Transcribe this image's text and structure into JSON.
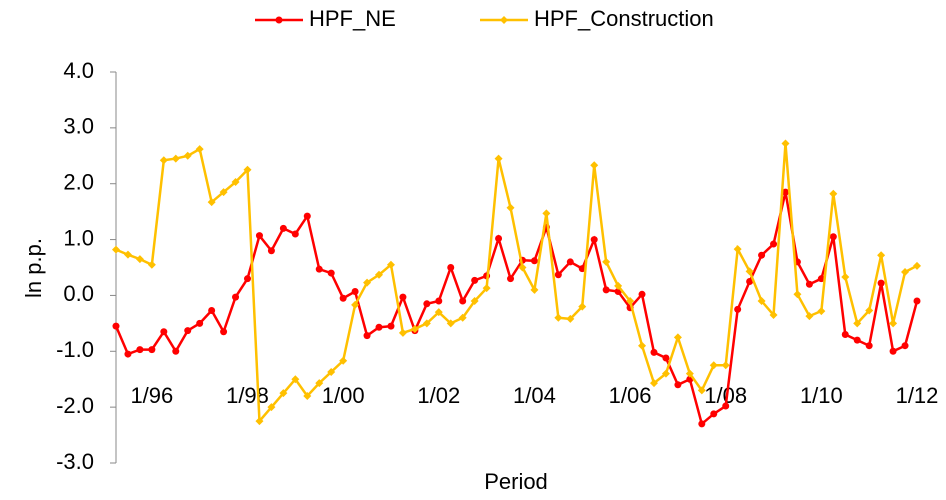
{
  "chart_data": {
    "type": "line",
    "y_label": "ln p.p.",
    "x_label": "Period",
    "categories": [
      null,
      null,
      null,
      "1/96",
      null,
      null,
      null,
      null,
      null,
      null,
      null,
      "1/98",
      null,
      null,
      null,
      null,
      null,
      null,
      null,
      "1/00",
      null,
      null,
      null,
      null,
      null,
      null,
      null,
      "1/02",
      null,
      null,
      null,
      null,
      null,
      null,
      null,
      "1/04",
      null,
      null,
      null,
      null,
      null,
      null,
      null,
      "1/06",
      null,
      null,
      null,
      null,
      null,
      null,
      null,
      "1/08",
      null,
      null,
      null,
      null,
      null,
      null,
      null,
      "1/10",
      null,
      null,
      null,
      null,
      null,
      null,
      null,
      "1/12"
    ],
    "series": [
      {
        "name": "HPF_NE",
        "color": "#ff0000",
        "values": [
          -0.55,
          -1.05,
          -0.97,
          -0.97,
          -0.65,
          -1.0,
          -0.63,
          -0.5,
          -0.27,
          -0.65,
          -0.03,
          0.3,
          1.07,
          0.8,
          1.2,
          1.1,
          1.42,
          0.47,
          0.4,
          -0.05,
          0.07,
          -0.72,
          -0.57,
          -0.55,
          -0.03,
          -0.63,
          -0.15,
          -0.1,
          0.5,
          -0.1,
          0.27,
          0.35,
          1.02,
          0.3,
          0.63,
          0.62,
          1.22,
          0.37,
          0.6,
          0.48,
          1.0,
          0.1,
          0.07,
          -0.22,
          0.02,
          -1.02,
          -1.12,
          -1.6,
          -1.5,
          -2.3,
          -2.12,
          -1.98,
          -0.25,
          0.25,
          0.72,
          0.92,
          1.85,
          0.6,
          0.2,
          0.3,
          1.05,
          -0.7,
          -0.8,
          -0.9,
          0.22,
          -1.0,
          -0.9,
          -0.1
        ]
      },
      {
        "name": "HPF_Construction",
        "color": "#ffc000",
        "values": [
          0.82,
          0.73,
          0.65,
          0.55,
          2.42,
          2.45,
          2.5,
          2.62,
          1.67,
          1.85,
          2.03,
          2.25,
          -2.25,
          -2.0,
          -1.75,
          -1.5,
          -1.8,
          -1.57,
          -1.37,
          -1.17,
          -0.17,
          0.23,
          0.37,
          0.55,
          -0.67,
          -0.6,
          -0.5,
          -0.3,
          -0.5,
          -0.4,
          -0.1,
          0.13,
          2.45,
          1.57,
          0.5,
          0.1,
          1.47,
          -0.4,
          -0.42,
          -0.2,
          2.33,
          0.6,
          0.17,
          -0.1,
          -0.9,
          -1.57,
          -1.4,
          -0.75,
          -1.4,
          -1.7,
          -1.25,
          -1.25,
          0.83,
          0.43,
          -0.1,
          -0.35,
          2.72,
          0.02,
          -0.37,
          -0.28,
          1.82,
          0.33,
          -0.5,
          -0.27,
          0.72,
          -0.5,
          0.42,
          0.53
        ]
      }
    ],
    "ylim": [
      -3,
      4
    ],
    "yticks": [
      {
        "value": -3,
        "label": "-3.0"
      },
      {
        "value": -2,
        "label": "-2.0"
      },
      {
        "value": -1,
        "label": "-1.0"
      },
      {
        "value": 0,
        "label": "0.0"
      },
      {
        "value": 1,
        "label": "1.0"
      },
      {
        "value": 2,
        "label": "2.0"
      },
      {
        "value": 3,
        "label": "3.0"
      },
      {
        "value": 4,
        "label": "4.0"
      }
    ],
    "legend": "top"
  }
}
